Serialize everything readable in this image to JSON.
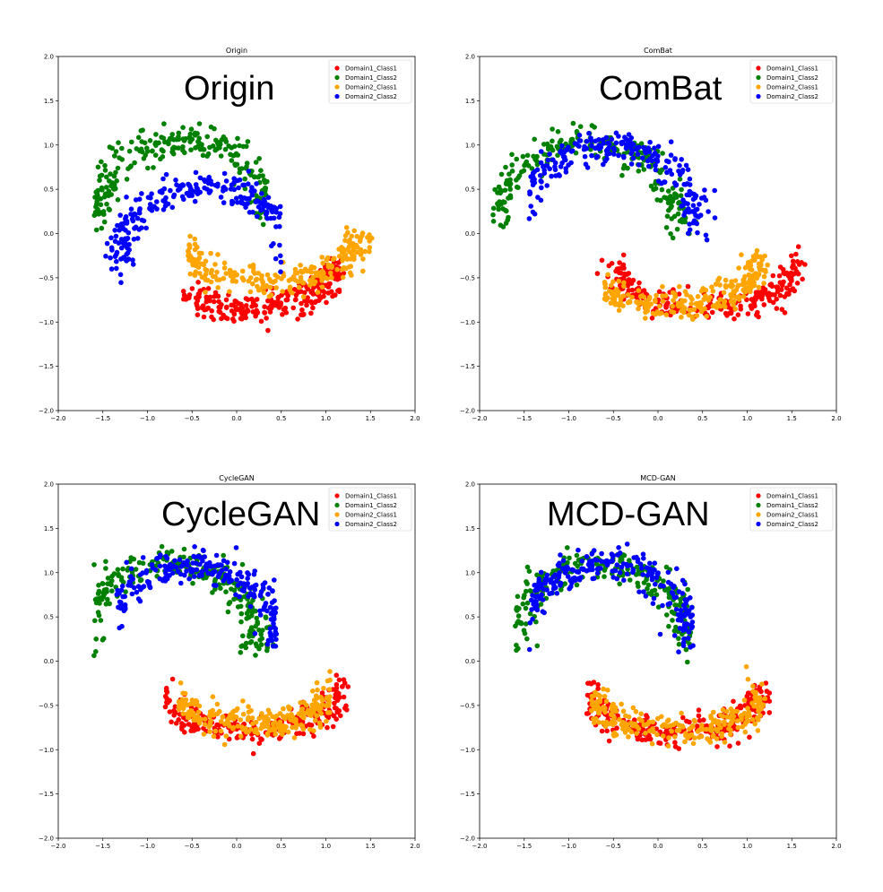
{
  "chart_data": [
    {
      "type": "scatter",
      "title": "Origin",
      "overlay_label": "Origin",
      "xlim": [
        -2.0,
        2.0
      ],
      "ylim": [
        -2.0,
        2.0
      ],
      "xticks": [
        "-2.0",
        "-1.5",
        "-1.0",
        "-0.5",
        "0.0",
        "0.5",
        "1.0",
        "1.5",
        "2.0"
      ],
      "yticks": [
        "-2.0",
        "-1.5",
        "-1.0",
        "-0.5",
        "0.0",
        "0.5",
        "1.0",
        "1.5",
        "2.0"
      ],
      "legend_position": "top-right",
      "series": [
        {
          "name": "Domain1_Class1",
          "color": "#ff0000",
          "shape": "lower-moon",
          "center": [
            0.1,
            0.15
          ],
          "x_range": [
            -0.6,
            1.2
          ],
          "sigma": 0.09
        },
        {
          "name": "Domain1_Class2",
          "color": "#008000",
          "shape": "upper-moon",
          "center": [
            -0.6,
            0.1
          ],
          "x_range": [
            -1.6,
            0.35
          ],
          "sigma": 0.09
        },
        {
          "name": "Domain2_Class1",
          "color": "#ffa500",
          "shape": "lower-moon",
          "center": [
            0.35,
            0.45
          ],
          "x_range": [
            -0.55,
            1.6
          ],
          "sigma": 0.09
        },
        {
          "name": "Domain2_Class2",
          "color": "#0000ff",
          "shape": "upper-moon",
          "center": [
            -0.35,
            -0.4
          ],
          "x_range": [
            -1.65,
            0.5
          ],
          "sigma": 0.09
        }
      ]
    },
    {
      "type": "scatter",
      "title": "ComBat",
      "overlay_label": "ComBat",
      "xlim": [
        -2.0,
        2.0
      ],
      "ylim": [
        -2.0,
        2.0
      ],
      "xticks": [
        "-2.0",
        "-1.5",
        "-1.0",
        "-0.5",
        "0.0",
        "0.5",
        "1.0",
        "1.5",
        "2.0"
      ],
      "yticks": [
        "-2.0",
        "-1.5",
        "-1.0",
        "-0.5",
        "0.0",
        "0.5",
        "1.0",
        "1.5",
        "2.0"
      ],
      "legend_position": "top-right",
      "series": [
        {
          "name": "Domain1_Class1",
          "color": "#ff0000",
          "shape": "lower-moon",
          "center": [
            0.55,
            0.15
          ],
          "x_range": [
            -0.75,
            1.65
          ],
          "sigma": 0.09
        },
        {
          "name": "Domain1_Class2",
          "color": "#008000",
          "shape": "upper-moon",
          "center": [
            -0.8,
            0.1
          ],
          "x_range": [
            -1.85,
            0.6
          ],
          "sigma": 0.09
        },
        {
          "name": "Domain2_Class1",
          "color": "#ffa500",
          "shape": "lower-moon",
          "center": [
            0.15,
            0.2
          ],
          "x_range": [
            -0.6,
            1.25
          ],
          "sigma": 0.09
        },
        {
          "name": "Domain2_Class2",
          "color": "#0000ff",
          "shape": "upper-moon",
          "center": [
            -0.55,
            0.05
          ],
          "x_range": [
            -1.45,
            0.65
          ],
          "sigma": 0.09
        }
      ]
    },
    {
      "type": "scatter",
      "title": "CycleGAN",
      "overlay_label": "CycleGAN",
      "xlim": [
        -2.0,
        2.0
      ],
      "ylim": [
        -2.0,
        2.0
      ],
      "xticks": [
        "-2.0",
        "-1.5",
        "-1.0",
        "-0.5",
        "0.0",
        "0.5",
        "1.0",
        "1.5",
        "2.0"
      ],
      "yticks": [
        "-2.0",
        "-1.5",
        "-1.0",
        "-0.5",
        "0.0",
        "0.5",
        "1.0",
        "1.5",
        "2.0"
      ],
      "legend_position": "top-right",
      "series": [
        {
          "name": "Domain1_Class1",
          "color": "#ff0000",
          "shape": "lower-moon",
          "center": [
            0.15,
            0.2
          ],
          "x_range": [
            -0.8,
            1.25
          ],
          "sigma": 0.09
        },
        {
          "name": "Domain1_Class2",
          "color": "#008000",
          "shape": "upper-moon",
          "center": [
            -0.75,
            0.15
          ],
          "x_range": [
            -1.6,
            0.45
          ],
          "sigma": 0.09
        },
        {
          "name": "Domain2_Class1",
          "color": "#ffa500",
          "shape": "lower-moon",
          "center": [
            0.15,
            0.3
          ],
          "x_range": [
            -0.65,
            1.05
          ],
          "sigma": 0.09
        },
        {
          "name": "Domain2_Class2",
          "color": "#0000ff",
          "shape": "upper-moon",
          "center": [
            -0.5,
            0.15
          ],
          "x_range": [
            -1.35,
            0.45
          ],
          "sigma": 0.09
        }
      ]
    },
    {
      "type": "scatter",
      "title": "MCD-GAN",
      "overlay_label": "MCD-GAN",
      "xlim": [
        -2.0,
        2.0
      ],
      "ylim": [
        -2.0,
        2.0
      ],
      "xticks": [
        "-2.0",
        "-1.5",
        "-1.0",
        "-0.5",
        "0.0",
        "0.5",
        "1.0",
        "1.5",
        "2.0"
      ],
      "yticks": [
        "-2.0",
        "-1.5",
        "-1.0",
        "-0.5",
        "0.0",
        "0.5",
        "1.0",
        "1.5",
        "2.0"
      ],
      "legend_position": "top-right",
      "series": [
        {
          "name": "Domain1_Class1",
          "color": "#ff0000",
          "shape": "lower-moon",
          "center": [
            0.2,
            0.2
          ],
          "x_range": [
            -0.8,
            1.25
          ],
          "sigma": 0.09
        },
        {
          "name": "Domain1_Class2",
          "color": "#008000",
          "shape": "upper-moon",
          "center": [
            -0.65,
            0.15
          ],
          "x_range": [
            -1.6,
            0.4
          ],
          "sigma": 0.09
        },
        {
          "name": "Domain2_Class1",
          "color": "#ffa500",
          "shape": "lower-moon",
          "center": [
            0.2,
            0.2
          ],
          "x_range": [
            -0.75,
            1.2
          ],
          "sigma": 0.09
        },
        {
          "name": "Domain2_Class2",
          "color": "#0000ff",
          "shape": "upper-moon",
          "center": [
            -0.6,
            0.15
          ],
          "x_range": [
            -1.45,
            0.4
          ],
          "sigma": 0.09
        }
      ]
    }
  ]
}
